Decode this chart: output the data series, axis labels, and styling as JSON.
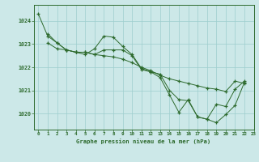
{
  "title": "Graphe pression niveau de la mer (hPa)",
  "line_color": "#2d6a2d",
  "bg_color": "#cce8e8",
  "grid_color": "#9ecece",
  "xlim": [
    -0.5,
    23
  ],
  "ylim": [
    1019.3,
    1024.7
  ],
  "yticks": [
    1020,
    1021,
    1022,
    1023,
    1024
  ],
  "xticks": [
    0,
    1,
    2,
    3,
    4,
    5,
    6,
    7,
    8,
    9,
    10,
    11,
    12,
    13,
    14,
    15,
    16,
    17,
    18,
    19,
    20,
    21,
    22,
    23
  ],
  "series1_x": [
    0,
    1,
    2,
    3,
    4,
    5,
    6,
    7,
    8,
    9,
    10,
    11,
    12,
    13,
    14,
    15,
    16,
    17,
    18,
    19,
    20,
    21,
    22
  ],
  "series1_y": [
    1024.3,
    1023.35,
    1023.05,
    1022.75,
    1022.65,
    1022.65,
    1022.55,
    1022.5,
    1022.45,
    1022.35,
    1022.2,
    1022.0,
    1021.85,
    1021.65,
    1021.5,
    1021.4,
    1021.3,
    1021.2,
    1021.1,
    1021.05,
    1020.95,
    1021.4,
    1021.3
  ],
  "series2_x": [
    1,
    2,
    3,
    4,
    5,
    6,
    7,
    8,
    9,
    10,
    11,
    12,
    13,
    14,
    15,
    16,
    17,
    18,
    19,
    20,
    21,
    22
  ],
  "series2_y": [
    1023.45,
    1023.05,
    1022.75,
    1022.65,
    1022.55,
    1022.8,
    1023.35,
    1023.3,
    1022.9,
    1022.55,
    1021.95,
    1021.8,
    1021.55,
    1020.8,
    1020.05,
    1020.6,
    1019.85,
    1019.75,
    1019.6,
    1019.95,
    1020.35,
    1021.35
  ],
  "series3_x": [
    1,
    2,
    3,
    4,
    5,
    6,
    7,
    8,
    9,
    10,
    11,
    12,
    13,
    14,
    15,
    16,
    17,
    18,
    19,
    20,
    21,
    22
  ],
  "series3_y": [
    1023.05,
    1022.8,
    1022.75,
    1022.65,
    1022.65,
    1022.55,
    1022.75,
    1022.75,
    1022.75,
    1022.5,
    1021.9,
    1021.8,
    1021.7,
    1021.0,
    1020.6,
    1020.55,
    1019.85,
    1019.75,
    1020.4,
    1020.3,
    1021.05,
    1021.4
  ]
}
